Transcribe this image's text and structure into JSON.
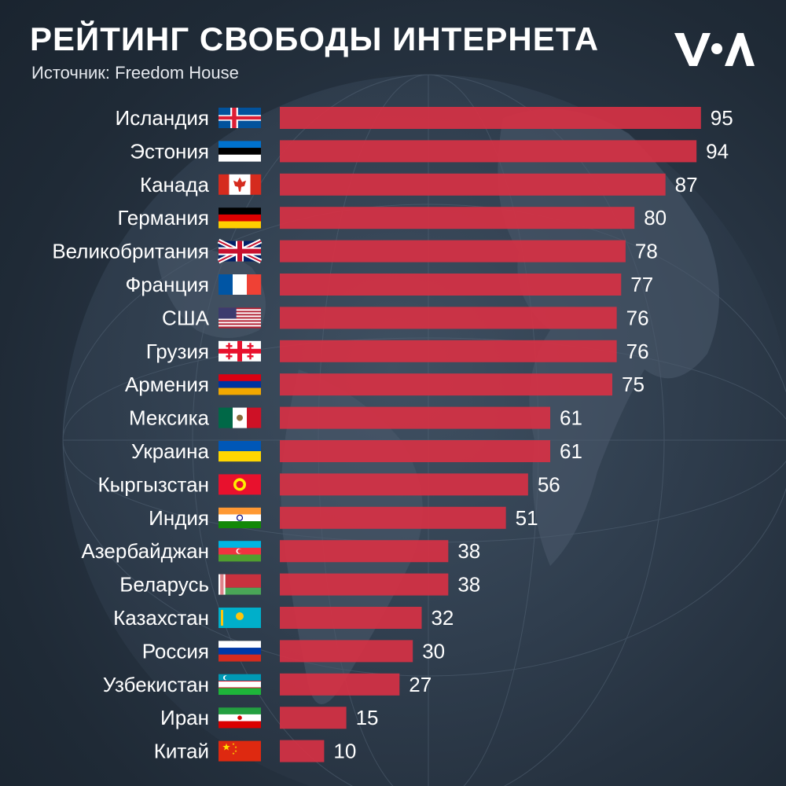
{
  "header": {
    "title": "РЕЙТИНГ СВОБОДЫ ИНТЕРНЕТА",
    "source": "Источник: Freedom House"
  },
  "colors": {
    "bar": "#d63144",
    "background": "#26323f"
  },
  "chart_data": {
    "type": "bar",
    "orientation": "horizontal",
    "title": "РЕЙТИНГ СВОБОДЫ ИНТЕРНЕТА",
    "xlim": [
      0,
      100
    ],
    "grid": false,
    "categories": [
      "Исландия",
      "Эстония",
      "Канада",
      "Германия",
      "Великобритания",
      "Франция",
      "США",
      "Грузия",
      "Армения",
      "Мексика",
      "Украина",
      "Кыргызстан",
      "Индия",
      "Азербайджан",
      "Беларусь",
      "Казахстан",
      "Россия",
      "Узбекистан",
      "Иран",
      "Китай"
    ],
    "values": [
      95,
      94,
      87,
      80,
      78,
      77,
      76,
      76,
      75,
      61,
      61,
      56,
      51,
      38,
      38,
      32,
      30,
      27,
      15,
      10
    ],
    "flags": [
      "iceland",
      "estonia",
      "canada",
      "germany",
      "uk",
      "france",
      "usa",
      "georgia",
      "armenia",
      "mexico",
      "ukraine",
      "kyrgyzstan",
      "india",
      "azerbaijan",
      "belarus",
      "kazakhstan",
      "russia",
      "uzbekistan",
      "iran",
      "china"
    ]
  }
}
